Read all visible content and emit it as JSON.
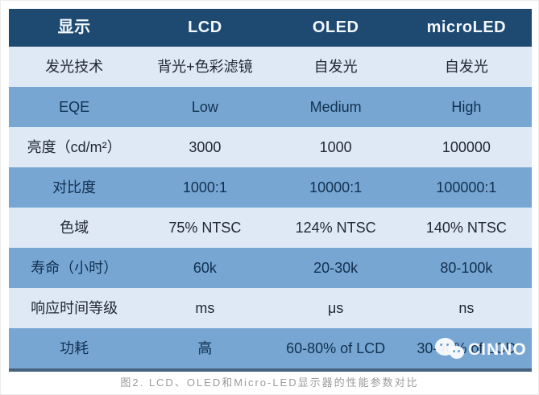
{
  "chart_data": {
    "type": "table",
    "title": "图2. LCD、OLED和Micro-LED显示器的性能参数对比",
    "columns": [
      "显示",
      "LCD",
      "OLED",
      "microLED"
    ],
    "rows": [
      [
        "发光技术",
        "背光+色彩滤镜",
        "自发光",
        "自发光"
      ],
      [
        "EQE",
        "Low",
        "Medium",
        "High"
      ],
      [
        "亮度（cd/m²）",
        "3000",
        "1000",
        "100000"
      ],
      [
        "对比度",
        "1000:1",
        "10000:1",
        "100000:1"
      ],
      [
        "色域",
        "75% NTSC",
        "124% NTSC",
        "140% NTSC"
      ],
      [
        "寿命（小时）",
        "60k",
        "20-30k",
        "80-100k"
      ],
      [
        "响应时间等级",
        "ms",
        "μs",
        "ns"
      ],
      [
        "功耗",
        "高",
        "60-80% of LCD",
        "30-40% of LCD"
      ]
    ],
    "layout": {
      "row_tones": [
        "light",
        "medium",
        "light",
        "medium",
        "light",
        "medium",
        "light",
        "medium"
      ],
      "grid": "off",
      "caption_position": "bottom-center"
    }
  },
  "watermark": {
    "icon": "wechat-icon",
    "text": "CINNO"
  },
  "colors": {
    "header_bg": "#1e4a72",
    "header_text": "#f3f8fc",
    "row_medium_bg": "#77a6d3",
    "row_medium_text": "#12304f",
    "row_light_bg": "#dee9f5",
    "row_light_text": "#212736",
    "bottom_border": "#46627d",
    "caption_text": "#9b9b9b",
    "watermark_text": "#ffffff"
  }
}
